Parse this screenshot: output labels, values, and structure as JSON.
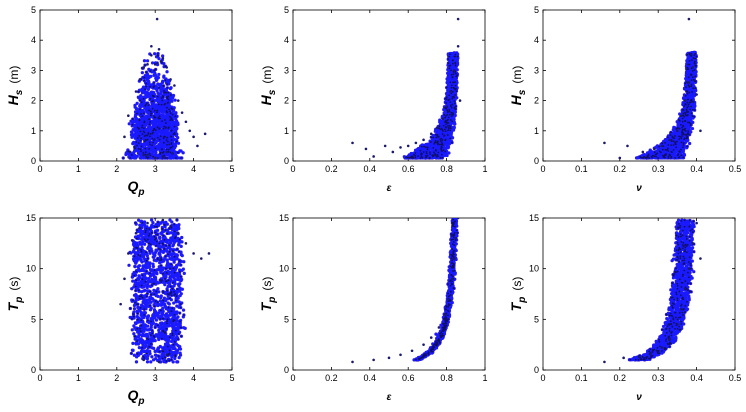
{
  "chart_data": [
    {
      "type": "scatter",
      "panel": "Hs-vs-Qp",
      "xlabel": {
        "main": "Q",
        "sub": "p",
        "unit": ""
      },
      "ylabel": {
        "main": "H",
        "sub": "s",
        "unit": "(m)"
      },
      "xlim": [
        0,
        5
      ],
      "ylim": [
        0,
        5
      ],
      "xticks": [
        "0",
        "1",
        "2",
        "3",
        "4",
        "5"
      ],
      "yticks": [
        "0",
        "1",
        "2",
        "3",
        "4",
        "5"
      ],
      "point_color": "#1a1aff",
      "outline_color": "#f2a07a",
      "series": [
        {
          "x": [
            2.2,
            2.3,
            2.35,
            2.5,
            2.6,
            2.7,
            2.8,
            2.9,
            3.0,
            3.1,
            3.2,
            3.3,
            3.4,
            3.5,
            3.6,
            3.7,
            3.8,
            3.9,
            4.0,
            4.1,
            4.3,
            3.0,
            2.8,
            3.2,
            3.05,
            2.9,
            3.3,
            3.45,
            2.7,
            3.15
          ],
          "y": [
            0.8,
            1.5,
            0.3,
            2.3,
            2.7,
            3.1,
            3.2,
            3.5,
            3.2,
            3.7,
            3.4,
            3.1,
            2.7,
            2.5,
            2.0,
            1.6,
            1.3,
            1.0,
            0.8,
            0.5,
            0.9,
            0.1,
            0.2,
            0.15,
            4.7,
            3.8,
            0.3,
            0.25,
            0.2,
            3.3
          ]
        }
      ]
    },
    {
      "type": "scatter",
      "panel": "Hs-vs-epsilon",
      "xlabel": {
        "main": "ε",
        "sub": "",
        "unit": ""
      },
      "ylabel": {
        "main": "H",
        "sub": "s",
        "unit": "(m)"
      },
      "xlim": [
        0,
        1
      ],
      "ylim": [
        0,
        5
      ],
      "xticks": [
        "0",
        "0.2",
        "0.4",
        "0.6",
        "0.8",
        "1"
      ],
      "yticks": [
        "0",
        "1",
        "2",
        "3",
        "4",
        "5"
      ],
      "point_color": "#1a1aff",
      "outline_color": "#f2a07a",
      "series": [
        {
          "x": [
            0.31,
            0.38,
            0.42,
            0.48,
            0.52,
            0.56,
            0.6,
            0.64,
            0.68,
            0.72,
            0.75,
            0.78,
            0.8,
            0.82,
            0.84,
            0.86,
            0.86,
            0.87
          ],
          "y": [
            0.6,
            0.4,
            0.15,
            0.5,
            0.3,
            0.45,
            0.5,
            0.6,
            0.7,
            0.9,
            1.1,
            1.4,
            1.8,
            2.3,
            3.0,
            3.8,
            4.7,
            2.0
          ]
        }
      ]
    },
    {
      "type": "scatter",
      "panel": "Hs-vs-nu",
      "xlabel": {
        "main": "ν",
        "sub": "",
        "unit": ""
      },
      "ylabel": {
        "main": "H",
        "sub": "s",
        "unit": "(m)"
      },
      "xlim": [
        0,
        0.5
      ],
      "ylim": [
        0,
        5
      ],
      "xticks": [
        "0",
        "0.1",
        "0.2",
        "0.3",
        "0.4",
        "0.5"
      ],
      "yticks": [
        "0",
        "1",
        "2",
        "3",
        "4",
        "5"
      ],
      "point_color": "#1a1aff",
      "outline_color": "#f2a07a",
      "series": [
        {
          "x": [
            0.16,
            0.2,
            0.22,
            0.26,
            0.29,
            0.31,
            0.33,
            0.35,
            0.36,
            0.37,
            0.38,
            0.39,
            0.4,
            0.41,
            0.38
          ],
          "y": [
            0.6,
            0.1,
            0.5,
            0.3,
            0.4,
            0.5,
            0.7,
            1.0,
            1.5,
            2.0,
            2.6,
            3.1,
            2.2,
            1.0,
            4.7
          ]
        }
      ]
    },
    {
      "type": "scatter",
      "panel": "Tp-vs-Qp",
      "xlabel": {
        "main": "Q",
        "sub": "p",
        "unit": ""
      },
      "ylabel": {
        "main": "T",
        "sub": "p",
        "unit": "(s)"
      },
      "xlim": [
        0,
        5
      ],
      "ylim": [
        0,
        15
      ],
      "xticks": [
        "0",
        "1",
        "2",
        "3",
        "4",
        "5"
      ],
      "yticks": [
        "0",
        "5",
        "10",
        "15"
      ],
      "point_color": "#1a1aff",
      "outline_color": "#f2a07a",
      "series": [
        {
          "x": [
            2.1,
            2.2,
            2.3,
            2.4,
            2.5,
            2.6,
            2.8,
            3.0,
            3.2,
            3.4,
            3.6,
            3.8,
            4.0,
            4.2,
            4.4,
            2.7,
            3.1,
            3.3
          ],
          "y": [
            6.5,
            9.0,
            11.5,
            12.8,
            13.5,
            14.0,
            14.5,
            15.0,
            14.8,
            14.2,
            13.5,
            12.5,
            11.5,
            11.0,
            11.5,
            1.0,
            0.8,
            1.5
          ]
        }
      ]
    },
    {
      "type": "scatter",
      "panel": "Tp-vs-epsilon",
      "xlabel": {
        "main": "ε",
        "sub": "",
        "unit": ""
      },
      "ylabel": {
        "main": "T",
        "sub": "p",
        "unit": "(s)"
      },
      "xlim": [
        0,
        1
      ],
      "ylim": [
        0,
        15
      ],
      "xticks": [
        "0",
        "0.2",
        "0.4",
        "0.6",
        "0.8",
        "1"
      ],
      "yticks": [
        "0",
        "5",
        "10",
        "15"
      ],
      "point_color": "#1a1aff",
      "outline_color": "#f2a07a",
      "series": [
        {
          "x": [
            0.31,
            0.42,
            0.5,
            0.56,
            0.62,
            0.68,
            0.72,
            0.76,
            0.79,
            0.81,
            0.83,
            0.84,
            0.85,
            0.86
          ],
          "y": [
            0.8,
            1.0,
            1.2,
            1.5,
            1.9,
            2.5,
            3.2,
            4.2,
            5.5,
            7.0,
            9.0,
            11.0,
            13.0,
            15.0
          ]
        }
      ]
    },
    {
      "type": "scatter",
      "panel": "Tp-vs-nu",
      "xlabel": {
        "main": "ν",
        "sub": "",
        "unit": ""
      },
      "ylabel": {
        "main": "T",
        "sub": "p",
        "unit": "(s)"
      },
      "xlim": [
        0,
        0.5
      ],
      "ylim": [
        0,
        15
      ],
      "xticks": [
        "0",
        "0.1",
        "0.2",
        "0.3",
        "0.4",
        "0.5"
      ],
      "yticks": [
        "0",
        "5",
        "10",
        "15"
      ],
      "point_color": "#1a1aff",
      "outline_color": "#f2a07a",
      "series": [
        {
          "x": [
            0.16,
            0.21,
            0.25,
            0.28,
            0.31,
            0.33,
            0.35,
            0.36,
            0.37,
            0.38,
            0.39,
            0.4,
            0.41
          ],
          "y": [
            0.8,
            1.2,
            1.3,
            1.6,
            2.2,
            3.0,
            4.5,
            6.0,
            8.0,
            10.0,
            12.5,
            14.5,
            11.0
          ]
        }
      ]
    }
  ]
}
